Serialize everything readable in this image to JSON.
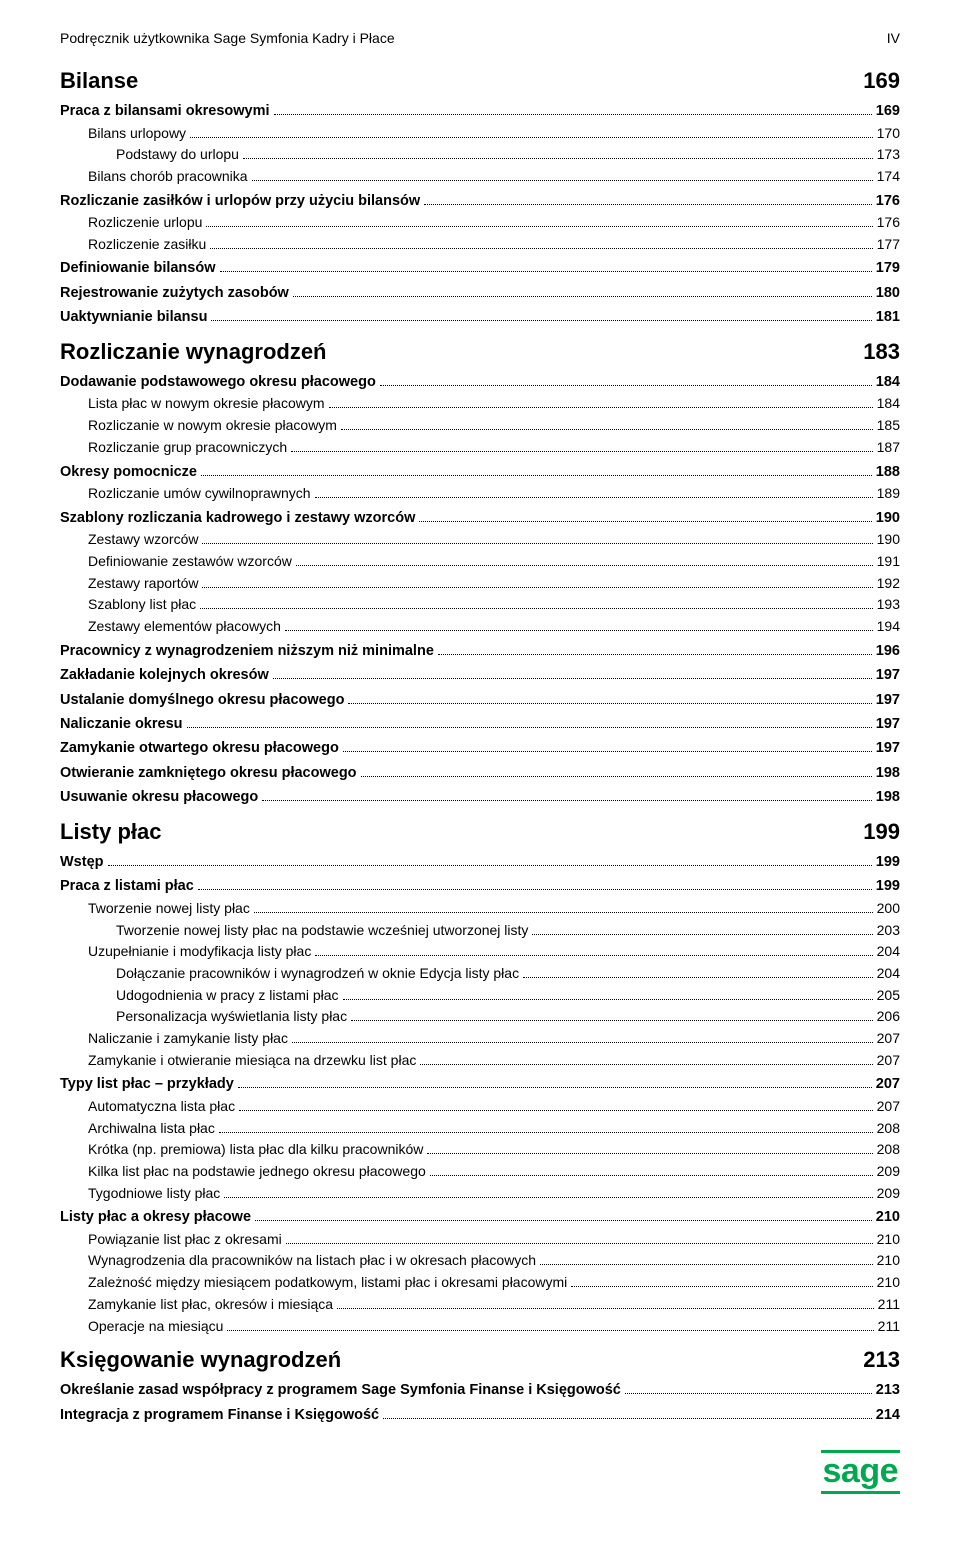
{
  "header": {
    "left": "Podręcznik użytkownika Sage Symfonia Kadry i Płace",
    "right": "IV"
  },
  "logo": {
    "text": "sage",
    "color": "#00a94f"
  },
  "toc": [
    {
      "level": "chapter",
      "label": "Bilanse",
      "page": "169"
    },
    {
      "level": 1,
      "label": "Praca z bilansami okresowymi",
      "page": "169"
    },
    {
      "level": 2,
      "label": "Bilans urlopowy",
      "page": "170"
    },
    {
      "level": 3,
      "label": "Podstawy do urlopu",
      "page": "173"
    },
    {
      "level": 2,
      "label": "Bilans chorób pracownika",
      "page": "174"
    },
    {
      "level": 1,
      "label": "Rozliczanie zasiłków i urlopów przy użyciu bilansów",
      "page": "176"
    },
    {
      "level": 2,
      "label": "Rozliczenie urlopu",
      "page": "176"
    },
    {
      "level": 2,
      "label": "Rozliczenie zasiłku",
      "page": "177"
    },
    {
      "level": 1,
      "label": "Definiowanie bilansów",
      "page": "179"
    },
    {
      "level": 1,
      "label": "Rejestrowanie zużytych zasobów",
      "page": "180"
    },
    {
      "level": 1,
      "label": "Uaktywnianie bilansu",
      "page": "181"
    },
    {
      "level": "chapter",
      "label": "Rozliczanie wynagrodzeń",
      "page": "183"
    },
    {
      "level": 1,
      "label": "Dodawanie podstawowego okresu płacowego",
      "page": "184"
    },
    {
      "level": 2,
      "label": "Lista płac w nowym okresie płacowym",
      "page": "184"
    },
    {
      "level": 2,
      "label": "Rozliczanie w nowym okresie płacowym",
      "page": "185"
    },
    {
      "level": 2,
      "label": "Rozliczanie grup pracowniczych",
      "page": "187"
    },
    {
      "level": 1,
      "label": "Okresy pomocnicze",
      "page": "188"
    },
    {
      "level": 2,
      "label": "Rozliczanie umów cywilnoprawnych",
      "page": "189"
    },
    {
      "level": 1,
      "label": "Szablony rozliczania kadrowego i zestawy wzorców",
      "page": "190"
    },
    {
      "level": 2,
      "label": "Zestawy wzorców",
      "page": "190"
    },
    {
      "level": 2,
      "label": "Definiowanie zestawów wzorców",
      "page": "191"
    },
    {
      "level": 2,
      "label": "Zestawy raportów",
      "page": "192"
    },
    {
      "level": 2,
      "label": "Szablony list płac",
      "page": "193"
    },
    {
      "level": 2,
      "label": "Zestawy elementów płacowych",
      "page": "194"
    },
    {
      "level": 1,
      "label": "Pracownicy z wynagrodzeniem niższym niż minimalne",
      "page": "196"
    },
    {
      "level": 1,
      "label": "Zakładanie kolejnych okresów",
      "page": "197"
    },
    {
      "level": 1,
      "label": "Ustalanie domyślnego okresu płacowego",
      "page": "197"
    },
    {
      "level": 1,
      "label": "Naliczanie okresu",
      "page": "197"
    },
    {
      "level": 1,
      "label": "Zamykanie otwartego okresu płacowego",
      "page": "197"
    },
    {
      "level": 1,
      "label": "Otwieranie zamkniętego okresu płacowego",
      "page": "198"
    },
    {
      "level": 1,
      "label": "Usuwanie okresu płacowego",
      "page": "198"
    },
    {
      "level": "chapter",
      "label": "Listy płac",
      "page": "199"
    },
    {
      "level": 1,
      "label": "Wstęp",
      "page": "199"
    },
    {
      "level": 1,
      "label": "Praca z listami płac",
      "page": "199"
    },
    {
      "level": 2,
      "label": "Tworzenie nowej listy płac",
      "page": "200"
    },
    {
      "level": 3,
      "label": "Tworzenie nowej listy płac na podstawie wcześniej utworzonej listy",
      "page": "203"
    },
    {
      "level": 2,
      "label": "Uzupełnianie i modyfikacja listy płac",
      "page": "204"
    },
    {
      "level": 3,
      "label": "Dołączanie pracowników i wynagrodzeń w oknie Edycja listy płac",
      "page": "204"
    },
    {
      "level": 3,
      "label": "Udogodnienia w pracy z listami płac",
      "page": "205"
    },
    {
      "level": 3,
      "label": "Personalizacja wyświetlania listy płac",
      "page": "206"
    },
    {
      "level": 2,
      "label": "Naliczanie i zamykanie listy płac",
      "page": "207"
    },
    {
      "level": 2,
      "label": "Zamykanie i otwieranie miesiąca na drzewku list płac",
      "page": "207"
    },
    {
      "level": 1,
      "label": "Typy list płac – przykłady",
      "page": "207"
    },
    {
      "level": 2,
      "label": "Automatyczna lista płac",
      "page": "207"
    },
    {
      "level": 2,
      "label": "Archiwalna lista płac",
      "page": "208"
    },
    {
      "level": 2,
      "label": "Krótka (np. premiowa) lista płac dla kilku pracowników",
      "page": "208"
    },
    {
      "level": 2,
      "label": "Kilka list płac na podstawie jednego okresu płacowego",
      "page": "209"
    },
    {
      "level": 2,
      "label": "Tygodniowe listy płac",
      "page": "209"
    },
    {
      "level": 1,
      "label": "Listy płac a okresy płacowe",
      "page": "210"
    },
    {
      "level": 2,
      "label": "Powiązanie list płac z okresami",
      "page": "210"
    },
    {
      "level": 2,
      "label": "Wynagrodzenia dla pracowników na listach płac i w okresach płacowych",
      "page": "210"
    },
    {
      "level": 2,
      "label": "Zależność między miesiącem podatkowym, listami płac i okresami płacowymi",
      "page": "210"
    },
    {
      "level": 2,
      "label": "Zamykanie list płac, okresów i miesiąca",
      "page": "211"
    },
    {
      "level": 2,
      "label": "Operacje na miesiącu",
      "page": "211"
    },
    {
      "level": "chapter",
      "label": "Księgowanie wynagrodzeń",
      "page": "213"
    },
    {
      "level": 1,
      "label": "Określanie zasad współpracy z programem Sage Symfonia Finanse i Księgowość",
      "page": "213"
    },
    {
      "level": 1,
      "label": "Integracja z programem Finanse i Księgowość",
      "page": "214"
    }
  ]
}
